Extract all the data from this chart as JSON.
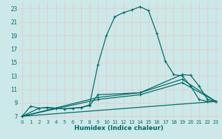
{
  "xlabel": "Humidex (Indice chaleur)",
  "bg_color": "#cce8e8",
  "grid_color": "#e8c8c8",
  "line_color": "#006868",
  "xlim": [
    -0.5,
    23.5
  ],
  "ylim": [
    6.5,
    24.0
  ],
  "yticks": [
    7,
    9,
    11,
    13,
    15,
    17,
    19,
    21,
    23
  ],
  "xticks": [
    0,
    1,
    2,
    3,
    4,
    5,
    6,
    7,
    8,
    9,
    10,
    11,
    12,
    13,
    14,
    15,
    16,
    17,
    18,
    19,
    20,
    21,
    22,
    23
  ],
  "curve1_x": [
    0,
    1,
    2,
    3,
    4,
    5,
    6,
    7,
    8,
    9,
    10,
    11,
    12,
    13,
    14,
    15,
    16,
    17,
    18,
    19,
    20,
    21,
    22,
    23
  ],
  "curve1_y": [
    7.0,
    8.5,
    8.2,
    8.3,
    8.2,
    8.1,
    8.2,
    8.3,
    8.7,
    14.7,
    19.0,
    21.8,
    22.4,
    22.8,
    23.3,
    22.7,
    19.3,
    15.2,
    13.2,
    13.0,
    11.5,
    9.5,
    9.2,
    9.2
  ],
  "curve2_x": [
    0,
    2,
    3,
    4,
    5,
    6,
    7,
    8,
    9,
    14,
    19,
    20,
    21,
    22,
    23
  ],
  "curve2_y": [
    7.0,
    8.2,
    8.3,
    8.2,
    8.1,
    8.2,
    8.3,
    8.6,
    10.2,
    10.5,
    13.2,
    13.1,
    11.5,
    9.5,
    9.2
  ],
  "curve3_x": [
    0,
    9,
    14,
    19,
    23
  ],
  "curve3_y": [
    7.0,
    9.8,
    10.5,
    12.5,
    9.2
  ],
  "curve4_x": [
    0,
    9,
    14,
    19,
    23
  ],
  "curve4_y": [
    7.0,
    9.5,
    10.2,
    12.0,
    9.2
  ],
  "curve5_x": [
    0,
    23
  ],
  "curve5_y": [
    7.0,
    9.2
  ]
}
